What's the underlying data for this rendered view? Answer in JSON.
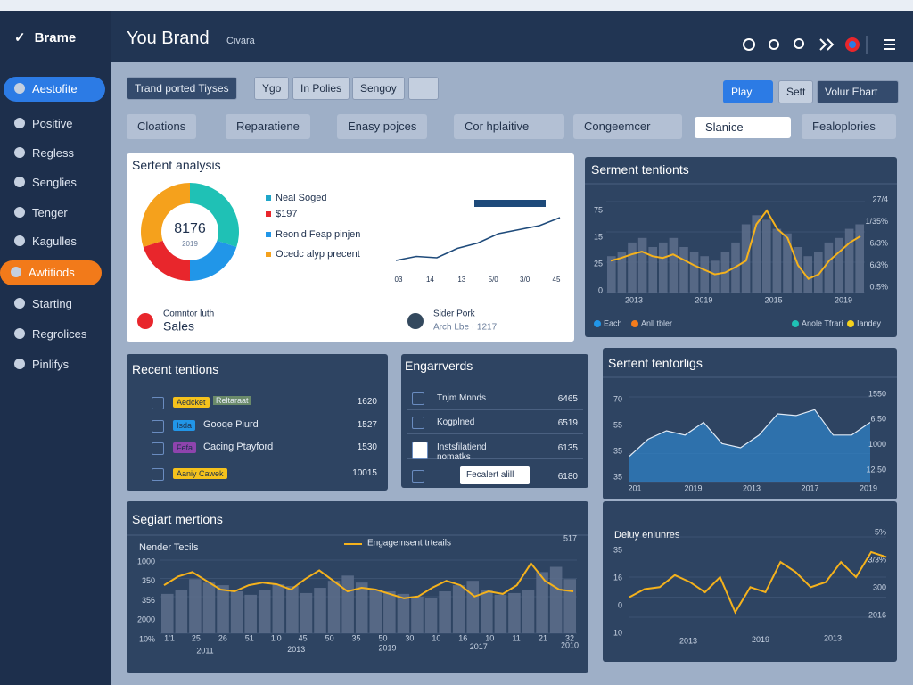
{
  "sidebar": {
    "brand": "Brame",
    "items": [
      "Aestofite",
      "Positive",
      "Regless",
      "Senglies",
      "Tenger",
      "Kagulles",
      "Awtitiods",
      "Starting",
      "Regrolices",
      "Pinlifys"
    ]
  },
  "header": {
    "title": "You Brand",
    "subtitle": "Civara"
  },
  "toolbar": {
    "left": [
      "Trand ported Tiyses",
      "Ygo",
      "In Polies",
      "Sengoy"
    ],
    "right": [
      "Play",
      "Sett",
      "Volur Ebart"
    ]
  },
  "filters": [
    "Cloations",
    "Reparatiene",
    "Enasy pojces",
    "Cor hplaitive",
    "Congeemcer",
    "Slanice",
    "Fealoplories"
  ],
  "sentiment": {
    "title": "Sertent analysis",
    "donut": {
      "center": "8176",
      "sub": "2019",
      "values": [
        30,
        20,
        20,
        30
      ],
      "colors": [
        "#1fc1b5",
        "#2196e8",
        "#e8262c",
        "#f5a11c"
      ]
    },
    "legend": [
      {
        "label": "Neal Soged",
        "color": "#1fa6c9"
      },
      {
        "label": "$197",
        "color": "#e8262c"
      },
      {
        "label": "Reonid Feap pinjen",
        "color": "#2196e8"
      },
      {
        "label": "Ocedc alyp precent",
        "color": "#f5a11c"
      }
    ],
    "line": {
      "values": [
        10,
        13,
        12,
        19,
        23,
        30,
        33,
        36,
        42
      ],
      "ylim": [
        0,
        50
      ],
      "color": "#1e4a7a",
      "x_labels": [
        "03",
        "14",
        "13",
        "5/0",
        "3/0",
        "45"
      ]
    },
    "people": [
      {
        "name": "Comntor luth",
        "role": "Sales"
      },
      {
        "name": "Sider Pork",
        "role": "Arch Lbe · 1217"
      }
    ]
  },
  "tentions": {
    "title": "Serment tentionts",
    "bars": {
      "values": [
        40,
        45,
        55,
        60,
        50,
        55,
        60,
        50,
        45,
        40,
        35,
        45,
        55,
        75,
        85,
        80,
        70,
        65,
        50,
        40,
        45,
        55,
        60,
        70,
        75
      ],
      "color": "#5d6f8c"
    },
    "line": {
      "values": [
        35,
        38,
        42,
        45,
        40,
        38,
        42,
        36,
        30,
        25,
        20,
        22,
        28,
        35,
        75,
        90,
        70,
        60,
        30,
        15,
        20,
        35,
        45,
        55,
        62
      ],
      "color": "#f5b21c"
    },
    "ylim": [
      0,
      100
    ],
    "y_labels": [
      "75",
      "15",
      "25",
      "0"
    ],
    "y2_labels": [
      "27/4",
      "1/35%",
      "6/3%",
      "6/3%",
      "0.5%"
    ],
    "x_labels": [
      "2013",
      "2019",
      "2015",
      "2019"
    ],
    "legend": [
      {
        "label": "Each",
        "color": "#2196e8"
      },
      {
        "label": "Anll tbler",
        "color": "#f57c1c"
      },
      {
        "label": "Anole Tfrari",
        "color": "#1fc1b5"
      },
      {
        "label": "Iandey",
        "color": "#f5d21c"
      }
    ]
  },
  "recent": {
    "title": "Recent tentions",
    "rows": [
      {
        "tag": "Aedcket",
        "tag_color": "#f5c21c",
        "text": "Reltaraat",
        "value": 1620
      },
      {
        "tag": "Isda",
        "tag_color": "#2196e8",
        "text": "Gooqe Piurd",
        "value": 1527
      },
      {
        "tag": "Fefa",
        "tag_color": "#8e44ad",
        "text": "Cacing Ptayford",
        "value": 1530
      },
      {
        "tag": "Aaniy Cawek",
        "tag_color": "#f5c21c",
        "text": "",
        "value": 10015
      }
    ]
  },
  "engagement": {
    "title": "Engarrverds",
    "rows": [
      {
        "text": "Tnjm Mnnds",
        "value": 6465
      },
      {
        "text": "Kogplned",
        "value": 6519
      },
      {
        "text": "Instsfilatiend nomatks",
        "value": 6135
      },
      {
        "text": "Fecalert alill",
        "value": 6180
      }
    ]
  },
  "area": {
    "title": "Sertent tentorligs",
    "values": [
      30,
      50,
      60,
      55,
      70,
      45,
      40,
      55,
      80,
      78,
      85,
      55,
      55,
      70
    ],
    "ylim": [
      0,
      100
    ],
    "color": "#2e7dbf",
    "y_labels": [
      "70",
      "55",
      "35",
      "35"
    ],
    "y2_labels": [
      "1550",
      "6.50",
      "1000",
      "12.50"
    ],
    "x_labels": [
      "201",
      "2019",
      "2013",
      "2017",
      "2019"
    ]
  },
  "mentions": {
    "title": "Segiart mertions",
    "subtitle": "Nender Tecils",
    "legend": "Engagemsent trteails",
    "corner": "517",
    "bars": {
      "values": [
        45,
        50,
        62,
        58,
        55,
        48,
        44,
        50,
        56,
        54,
        46,
        52,
        60,
        66,
        58,
        50,
        48,
        45,
        42,
        40,
        48,
        55,
        60,
        50,
        44,
        46,
        50,
        70,
        76,
        62
      ],
      "color": "#5d6f8c"
    },
    "line": {
      "values": [
        55,
        65,
        70,
        60,
        50,
        48,
        55,
        58,
        56,
        50,
        62,
        72,
        60,
        48,
        52,
        50,
        45,
        40,
        42,
        52,
        60,
        55,
        42,
        48,
        45,
        55,
        80,
        60,
        50,
        48
      ],
      "color": "#f5b21c"
    },
    "ylim": [
      0,
      100
    ],
    "y_labels": [
      "1000",
      "350",
      "356",
      "2000",
      "10%"
    ],
    "x_labels": [
      "1'1",
      "25",
      "26",
      "51",
      "1'0",
      "45",
      "50",
      "35",
      "50",
      "30",
      "10",
      "16",
      "10",
      "11",
      "21",
      "32"
    ],
    "years": [
      "2011",
      "2013",
      "2019",
      "2017",
      "2010"
    ]
  },
  "daily": {
    "title": "Deluy enlunres",
    "values": [
      20,
      28,
      30,
      42,
      35,
      25,
      40,
      5,
      30,
      25,
      55,
      45,
      30,
      35,
      55,
      40,
      65,
      60
    ],
    "ylim": [
      0,
      80
    ],
    "color": "#f5b21c",
    "y_labels": [
      "35",
      "16",
      "0",
      "10"
    ],
    "y2_labels": [
      "5%",
      "3/3%",
      "300",
      "2016"
    ],
    "x_labels": [
      "2013",
      "2019",
      "2013"
    ]
  }
}
